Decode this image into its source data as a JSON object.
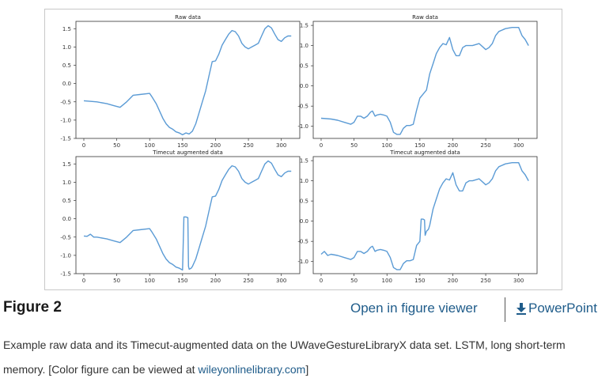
{
  "chart_data": [
    {
      "type": "line",
      "title": "Raw data",
      "xlim": [
        -12,
        328
      ],
      "ylim": [
        -1.5,
        1.7
      ],
      "xticks": [
        0,
        50,
        100,
        150,
        200,
        250,
        300
      ],
      "yticks": [
        -1.5,
        -1.0,
        -0.5,
        0.0,
        0.5,
        1.0,
        1.5
      ],
      "ytick_labels": [
        "-1.5",
        "-1.0",
        "-0.5",
        "0.0",
        "0.5",
        "1.0",
        "1.5"
      ],
      "series": [
        {
          "name": "signal",
          "color": "#5b9bd5",
          "x": [
            0,
            20,
            35,
            45,
            55,
            65,
            75,
            85,
            100,
            103,
            110,
            115,
            120,
            125,
            130,
            135,
            140,
            145,
            150,
            155,
            160,
            165,
            170,
            175,
            180,
            185,
            190,
            195,
            200,
            205,
            210,
            215,
            220,
            225,
            230,
            235,
            240,
            245,
            250,
            255,
            260,
            265,
            270,
            275,
            280,
            285,
            290,
            295,
            300,
            305,
            310,
            315
          ],
          "y": [
            -0.47,
            -0.5,
            -0.55,
            -0.6,
            -0.65,
            -0.5,
            -0.32,
            -0.3,
            -0.27,
            -0.35,
            -0.55,
            -0.75,
            -0.95,
            -1.1,
            -1.2,
            -1.25,
            -1.32,
            -1.35,
            -1.4,
            -1.35,
            -1.38,
            -1.3,
            -1.1,
            -0.8,
            -0.5,
            -0.2,
            0.2,
            0.6,
            0.62,
            0.8,
            1.05,
            1.2,
            1.35,
            1.45,
            1.42,
            1.3,
            1.1,
            1.0,
            0.95,
            1.0,
            1.05,
            1.1,
            1.3,
            1.5,
            1.58,
            1.52,
            1.35,
            1.2,
            1.15,
            1.25,
            1.3,
            1.3
          ]
        }
      ]
    },
    {
      "type": "line",
      "title": "Raw data",
      "xlim": [
        -12,
        328
      ],
      "ylim": [
        -1.3,
        1.6
      ],
      "xticks": [
        0,
        50,
        100,
        150,
        200,
        250,
        300
      ],
      "yticks": [
        -1.0,
        -0.5,
        0.0,
        0.5,
        1.0,
        1.5
      ],
      "ytick_labels": [
        "-1.0",
        "-0.5",
        "0.0",
        "0.5",
        "1.0",
        "1.5"
      ],
      "series": [
        {
          "name": "signal",
          "color": "#5b9bd5",
          "x": [
            0,
            15,
            25,
            35,
            45,
            50,
            55,
            60,
            65,
            70,
            75,
            78,
            82,
            85,
            90,
            95,
            100,
            105,
            110,
            115,
            120,
            125,
            130,
            135,
            140,
            145,
            150,
            155,
            160,
            165,
            170,
            175,
            180,
            185,
            190,
            195,
            200,
            205,
            210,
            215,
            220,
            225,
            230,
            240,
            250,
            255,
            260,
            265,
            270,
            280,
            290,
            300,
            305,
            310,
            315
          ],
          "y": [
            -0.8,
            -0.82,
            -0.85,
            -0.9,
            -0.95,
            -0.9,
            -0.75,
            -0.75,
            -0.8,
            -0.75,
            -0.65,
            -0.62,
            -0.75,
            -0.72,
            -0.7,
            -0.72,
            -0.75,
            -0.9,
            -1.15,
            -1.2,
            -1.2,
            -1.05,
            -0.98,
            -0.98,
            -0.95,
            -0.6,
            -0.3,
            -0.2,
            -0.1,
            0.3,
            0.55,
            0.8,
            0.95,
            1.05,
            1.02,
            1.2,
            0.9,
            0.75,
            0.75,
            0.95,
            1.0,
            1.0,
            1.0,
            1.05,
            0.9,
            0.95,
            1.05,
            1.25,
            1.35,
            1.42,
            1.45,
            1.45,
            1.25,
            1.15,
            1.0
          ]
        }
      ]
    },
    {
      "type": "line",
      "title": "Timecut augmented data",
      "xlim": [
        -12,
        328
      ],
      "ylim": [
        -1.5,
        1.7
      ],
      "xticks": [
        0,
        50,
        100,
        150,
        200,
        250,
        300
      ],
      "yticks": [
        -1.5,
        -1.0,
        -0.5,
        0.0,
        0.5,
        1.0,
        1.5
      ],
      "ytick_labels": [
        "-1.5",
        "-1.0",
        "-0.5",
        "0.0",
        "0.5",
        "1.0",
        "1.5"
      ],
      "series": [
        {
          "name": "signal",
          "color": "#5b9bd5",
          "x": [
            0,
            5,
            10,
            15,
            20,
            35,
            45,
            55,
            65,
            75,
            85,
            100,
            103,
            110,
            115,
            120,
            125,
            130,
            135,
            140,
            145,
            150,
            152,
            155,
            158,
            159,
            160,
            163,
            165,
            170,
            175,
            180,
            185,
            190,
            195,
            200,
            205,
            210,
            215,
            220,
            225,
            230,
            235,
            240,
            245,
            250,
            255,
            260,
            265,
            270,
            275,
            280,
            285,
            290,
            295,
            300,
            305,
            310,
            315
          ],
          "y": [
            -0.47,
            -0.48,
            -0.42,
            -0.5,
            -0.5,
            -0.55,
            -0.6,
            -0.65,
            -0.5,
            -0.32,
            -0.3,
            -0.27,
            -0.35,
            -0.55,
            -0.75,
            -0.95,
            -1.1,
            -1.2,
            -1.25,
            -1.32,
            -1.35,
            -1.4,
            0.05,
            0.05,
            0.03,
            -1.3,
            -1.38,
            -1.35,
            -1.3,
            -1.1,
            -0.8,
            -0.5,
            -0.2,
            0.2,
            0.6,
            0.62,
            0.8,
            1.05,
            1.2,
            1.35,
            1.45,
            1.42,
            1.3,
            1.1,
            1.0,
            0.95,
            1.0,
            1.05,
            1.1,
            1.3,
            1.5,
            1.58,
            1.52,
            1.35,
            1.2,
            1.15,
            1.25,
            1.3,
            1.3
          ]
        }
      ]
    },
    {
      "type": "line",
      "title": "Timecut augmented data",
      "xlim": [
        -12,
        328
      ],
      "ylim": [
        -1.3,
        1.6
      ],
      "xticks": [
        0,
        50,
        100,
        150,
        200,
        250,
        300
      ],
      "yticks": [
        -1.0,
        -0.5,
        0.0,
        0.5,
        1.0,
        1.5
      ],
      "ytick_labels": [
        "-1.0",
        "-0.5",
        "0.0",
        "0.5",
        "1.0",
        "1.5"
      ],
      "series": [
        {
          "name": "signal",
          "color": "#5b9bd5",
          "x": [
            0,
            5,
            10,
            15,
            25,
            35,
            45,
            50,
            55,
            60,
            65,
            70,
            75,
            78,
            82,
            85,
            90,
            95,
            100,
            105,
            110,
            115,
            120,
            125,
            130,
            135,
            140,
            145,
            150,
            152,
            155,
            157,
            158,
            160,
            163,
            165,
            170,
            175,
            180,
            185,
            190,
            195,
            200,
            205,
            210,
            215,
            220,
            225,
            230,
            240,
            250,
            255,
            260,
            265,
            270,
            280,
            290,
            300,
            305,
            310,
            315
          ],
          "y": [
            -0.82,
            -0.75,
            -0.85,
            -0.82,
            -0.85,
            -0.9,
            -0.95,
            -0.9,
            -0.75,
            -0.75,
            -0.8,
            -0.75,
            -0.65,
            -0.62,
            -0.75,
            -0.72,
            -0.7,
            -0.72,
            -0.75,
            -0.9,
            -1.15,
            -1.2,
            -1.2,
            -1.05,
            -0.98,
            -0.98,
            -0.95,
            -0.6,
            -0.5,
            0.05,
            0.05,
            0.03,
            -0.35,
            -0.25,
            -0.2,
            -0.1,
            0.3,
            0.55,
            0.8,
            0.95,
            1.05,
            1.02,
            1.2,
            0.9,
            0.75,
            0.75,
            0.95,
            1.0,
            1.0,
            1.05,
            0.9,
            0.95,
            1.05,
            1.25,
            1.35,
            1.42,
            1.45,
            1.45,
            1.25,
            1.15,
            1.0
          ]
        }
      ]
    }
  ],
  "figure": {
    "label": "Figure 2",
    "open_viewer": "Open in figure viewer",
    "powerpoint": "PowerPoint",
    "caption_text": "Example raw data and its Timecut-augmented data on the UWaveGestureLibraryX data set. LSTM, long short-term memory. [Color figure can be viewed at ",
    "caption_link": "wileyonlinelibrary.com",
    "caption_end": "]"
  },
  "colors": {
    "line": "#5b9bd5",
    "link": "#1f5c8a"
  }
}
